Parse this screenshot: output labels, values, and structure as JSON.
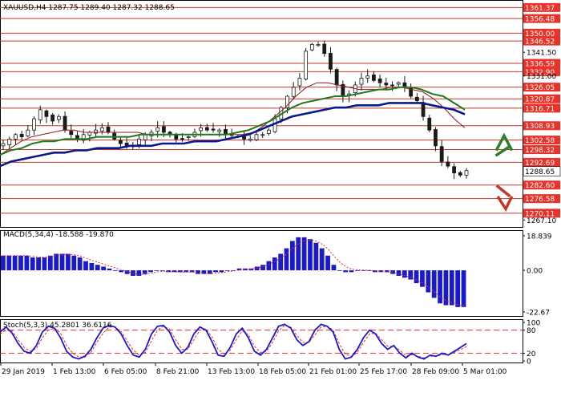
{
  "colors": {
    "resistance": "#c0392b",
    "level_label_bg": "#e8322a",
    "price_label_bg": "#ffffff",
    "ma_fast": "#8b1a1a",
    "ma_mid": "#1e7a1e",
    "ma_slow": "#0a1a8c",
    "candle": "#1a1a1a",
    "macd_hist": "#1a1acd",
    "macd_signal": "#e03030",
    "stoch_main": "#1a1acd",
    "stoch_signal": "#e03030",
    "arrow_up": "#2e7d32",
    "arrow_down": "#c0392b"
  },
  "chart_data": [
    {
      "type": "candlestick",
      "title": "XAUUSD,H4  1287.75 1289.40 1287.32 1288.65",
      "current_price": 1288.65,
      "ylim": [
        1264,
        1364
      ],
      "y_ticks": [
        1341.5,
        1331.0,
        1267.1
      ],
      "levels": [
        1361.37,
        1356.48,
        1350.0,
        1346.52,
        1336.59,
        1332.9,
        1326.05,
        1320.87,
        1316.71,
        1308.93,
        1302.58,
        1298.32,
        1292.69,
        1282.6,
        1276.58,
        1270.11
      ],
      "x_ticks": [
        "29 Jan 2019",
        "1 Feb 13:00",
        "6 Feb 05:00",
        "8 Feb 21:00",
        "13 Feb 13:00",
        "18 Feb 05:00",
        "21 Feb 01:00",
        "25 Feb 17:00",
        "28 Feb 09:00",
        "5 Mar 01:00"
      ],
      "close_path": [
        1301,
        1303,
        1305,
        1304,
        1307,
        1312,
        1316,
        1313,
        1311,
        1313,
        1307,
        1305,
        1303,
        1305,
        1306,
        1307,
        1308,
        1306,
        1303,
        1301,
        1300,
        1300,
        1303,
        1305,
        1306,
        1308,
        1306,
        1305,
        1303,
        1303,
        1304,
        1306,
        1308,
        1307,
        1307,
        1307,
        1305,
        1305,
        1304,
        1303,
        1303,
        1305,
        1305,
        1307,
        1312,
        1317,
        1322,
        1326,
        1330,
        1342,
        1345,
        1345,
        1341,
        1334,
        1327,
        1322,
        1323,
        1327,
        1330,
        1331,
        1329,
        1328,
        1327,
        1327,
        1328,
        1326,
        1322,
        1320,
        1313,
        1307,
        1300,
        1293,
        1291,
        1288,
        1287,
        1289
      ],
      "ma_fast": [
        1296,
        1299,
        1302,
        1304,
        1305,
        1306,
        1307,
        1307,
        1306,
        1306,
        1306,
        1306,
        1306,
        1306,
        1305,
        1305,
        1305,
        1305,
        1305,
        1305,
        1305,
        1305,
        1305,
        1305,
        1306,
        1309,
        1313,
        1317,
        1322,
        1326,
        1328,
        1328,
        1327,
        1326,
        1325,
        1325,
        1325,
        1326,
        1326,
        1325,
        1324,
        1321,
        1317,
        1312,
        1308
      ],
      "ma_mid": [
        1296,
        1298,
        1299,
        1301,
        1302,
        1302,
        1303,
        1303,
        1303,
        1304,
        1304,
        1304,
        1304,
        1305,
        1305,
        1305,
        1305,
        1305,
        1305,
        1305,
        1305,
        1305,
        1306,
        1307,
        1309,
        1311,
        1314,
        1317,
        1319,
        1320,
        1321,
        1322,
        1322,
        1323,
        1324,
        1325,
        1325,
        1326,
        1326,
        1325,
        1323,
        1322,
        1319,
        1316
      ],
      "ma_slow": [
        1291,
        1293,
        1294,
        1295,
        1296,
        1297,
        1297,
        1298,
        1298,
        1299,
        1299,
        1299,
        1300,
        1300,
        1300,
        1301,
        1301,
        1301,
        1302,
        1302,
        1302,
        1303,
        1304,
        1305,
        1307,
        1309,
        1311,
        1313,
        1314,
        1315,
        1316,
        1317,
        1317,
        1318,
        1318,
        1318,
        1319,
        1319,
        1319,
        1319,
        1318,
        1317,
        1316,
        1314
      ]
    },
    {
      "type": "bar",
      "title": "MACD(5,34,4) -18.588 -19.870",
      "y_ticks": [
        18.839,
        0.0,
        -22.67
      ],
      "ylim": [
        -24,
        21
      ],
      "values": [
        8,
        8,
        8,
        8,
        8,
        7,
        7,
        7,
        8,
        9,
        9,
        9,
        8,
        7,
        5,
        4,
        3,
        2,
        1,
        0,
        -1,
        -2,
        -3,
        -3,
        -2,
        -1,
        0,
        0,
        -1,
        -1,
        -1,
        -1,
        -1,
        -2,
        -2,
        -2,
        -1,
        -1,
        0,
        0,
        1,
        1,
        1,
        2,
        3,
        5,
        7,
        9,
        12,
        16,
        18,
        18,
        17,
        15,
        12,
        8,
        3,
        0,
        -1,
        -1,
        0,
        0,
        0,
        -1,
        -1,
        -1,
        -2,
        -3,
        -4,
        -5,
        -7,
        -9,
        -12,
        -15,
        -18,
        -19,
        -19,
        -20,
        -20
      ]
    },
    {
      "type": "line",
      "title": "Stoch(5,3,3) 45.2801 36.6116",
      "y_ticks": [
        100,
        80,
        20,
        0
      ],
      "ylim": [
        0,
        100
      ],
      "levels": [
        80,
        20
      ],
      "series": [
        {
          "values": [
            75,
            88,
            72,
            45,
            25,
            20,
            40,
            75,
            90,
            85,
            60,
            25,
            10,
            5,
            12,
            30,
            60,
            85,
            92,
            88,
            70,
            40,
            15,
            10,
            30,
            70,
            90,
            92,
            75,
            40,
            20,
            35,
            70,
            88,
            80,
            50,
            15,
            12,
            35,
            70,
            85,
            60,
            25,
            15,
            30,
            60,
            90,
            95,
            85,
            55,
            40,
            50,
            80,
            95,
            90,
            75,
            30,
            5,
            10,
            30,
            60,
            80,
            70,
            45,
            30,
            40,
            20,
            8,
            20,
            10,
            5,
            15,
            12,
            20,
            15,
            25,
            35,
            45
          ]
        },
        {
          "values": [
            70,
            80,
            78,
            55,
            35,
            25,
            32,
            60,
            80,
            85,
            72,
            40,
            20,
            10,
            10,
            22,
            48,
            72,
            88,
            88,
            76,
            52,
            28,
            15,
            22,
            52,
            80,
            90,
            82,
            55,
            30,
            30,
            55,
            80,
            82,
            62,
            30,
            18,
            28,
            55,
            78,
            68,
            38,
            22,
            25,
            48,
            78,
            92,
            88,
            66,
            48,
            48,
            68,
            88,
            90,
            80,
            45,
            18,
            12,
            22,
            48,
            70,
            72,
            55,
            38,
            38,
            28,
            14,
            16,
            12,
            8,
            12,
            12,
            16,
            16,
            22,
            30,
            37
          ]
        }
      ]
    }
  ]
}
